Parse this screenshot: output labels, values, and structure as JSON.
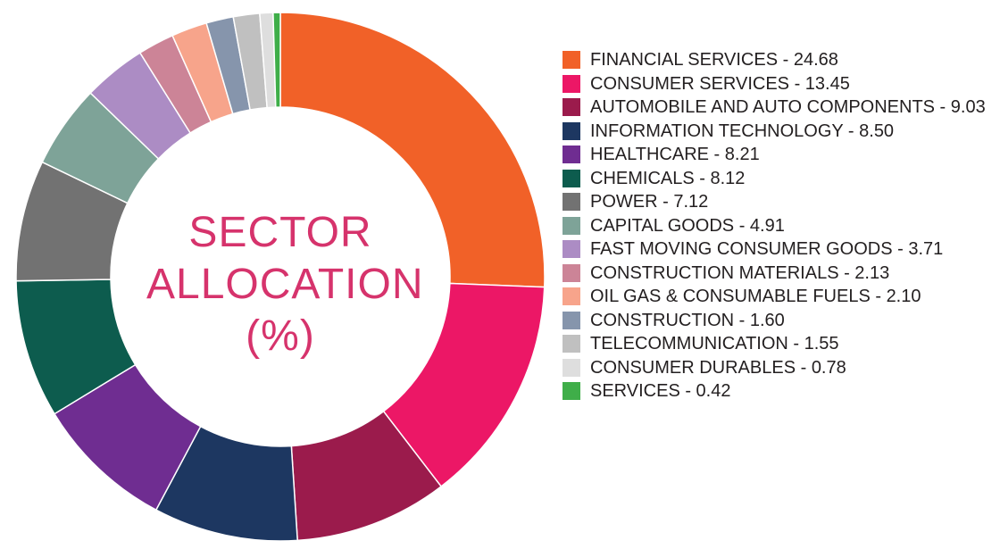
{
  "chart_data": {
    "type": "pie",
    "title_lines": [
      "SECTOR",
      "ALLOCATION",
      "(%)"
    ],
    "donut": true,
    "legend_position": "right",
    "slices": [
      {
        "label": "FINANCIAL SERVICES - 24.68",
        "value": 24.68,
        "color": "#f16128"
      },
      {
        "label": "CONSUMER SERVICES - 13.45",
        "value": 13.45,
        "color": "#ec1766"
      },
      {
        "label": "AUTOMOBILE AND AUTO COMPONENTS - 9.03",
        "value": 9.03,
        "color": "#9b1b4c"
      },
      {
        "label": "INFORMATION TECHNOLOGY - 8.50",
        "value": 8.5,
        "color": "#1d3761"
      },
      {
        "label": "HEALTHCARE - 8.21",
        "value": 8.21,
        "color": "#6f2d91"
      },
      {
        "label": "CHEMICALS - 8.12",
        "value": 8.12,
        "color": "#0d5c4e"
      },
      {
        "label": "POWER - 7.12",
        "value": 7.12,
        "color": "#727272"
      },
      {
        "label": "CAPITAL GOODS - 4.91",
        "value": 4.91,
        "color": "#7ea398"
      },
      {
        "label": "FAST MOVING CONSUMER GOODS - 3.71",
        "value": 3.71,
        "color": "#ac8cc4"
      },
      {
        "label": "CONSTRUCTION MATERIALS - 2.13",
        "value": 2.13,
        "color": "#cc8497"
      },
      {
        "label": "OIL GAS & CONSUMABLE FUELS - 2.10",
        "value": 2.1,
        "color": "#f7a48b"
      },
      {
        "label": "CONSTRUCTION - 1.60",
        "value": 1.6,
        "color": "#8695ac"
      },
      {
        "label": "TELECOMMUNICATION - 1.55",
        "value": 1.55,
        "color": "#c0c0c0"
      },
      {
        "label": "CONSUMER DURABLES - 0.78",
        "value": 0.78,
        "color": "#dedede"
      },
      {
        "label": "SERVICES - 0.42",
        "value": 0.42,
        "color": "#3fae49"
      }
    ]
  }
}
